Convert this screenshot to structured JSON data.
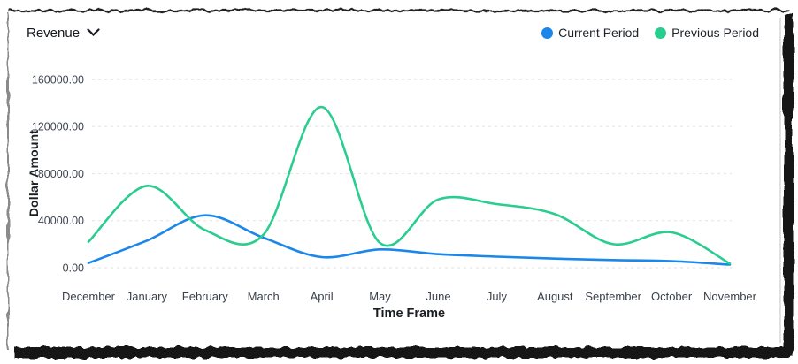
{
  "header": {
    "metric_dropdown": {
      "selected": "Revenue"
    }
  },
  "chart_data": {
    "type": "line",
    "title": "",
    "categories": [
      "December",
      "January",
      "February",
      "March",
      "April",
      "May",
      "June",
      "July",
      "August",
      "September",
      "October",
      "November"
    ],
    "series": [
      {
        "name": "Current Period",
        "color": "#1b87ea",
        "values": [
          4000,
          23000,
          44500,
          25500,
          9000,
          15500,
          11500,
          9400,
          7700,
          6500,
          5600,
          2600
        ]
      },
      {
        "name": "Previous Period",
        "color": "#29cd8f",
        "values": [
          22000,
          69500,
          32000,
          28000,
          136500,
          21000,
          58000,
          54000,
          45500,
          20000,
          30000,
          3500
        ]
      }
    ],
    "xlabel": "Time Frame",
    "ylabel": "Dollar Amount",
    "ylim": [
      0,
      160000
    ],
    "yticks": [
      0,
      40000,
      80000,
      120000,
      160000
    ],
    "ytick_labels": [
      "0.00",
      "40000.00",
      "80000.00",
      "120000.00",
      "160000.00"
    ],
    "grid": "horizontal-dashed",
    "gridline_color": "#e2e2e2",
    "legend_position": "top-right",
    "line_width": 2.6
  }
}
